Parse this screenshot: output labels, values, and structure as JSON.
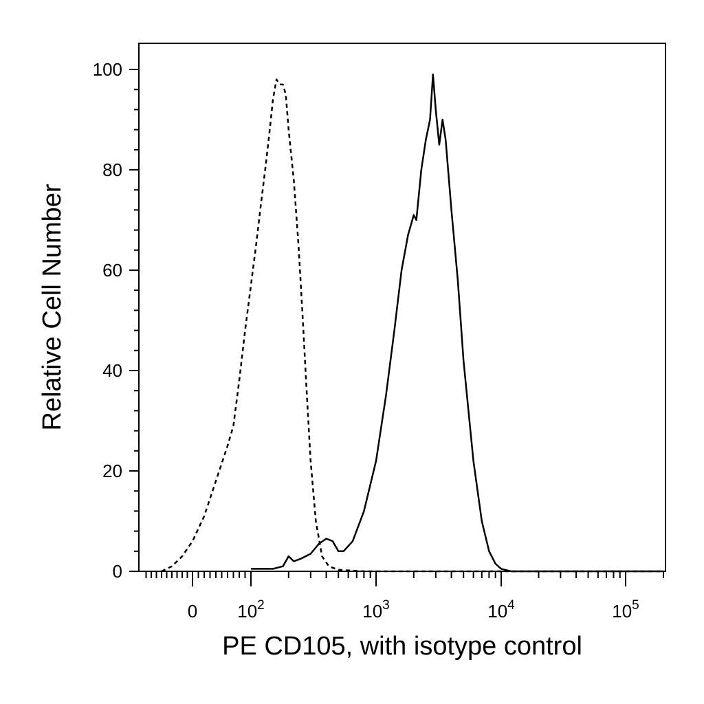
{
  "chart_data": {
    "type": "line",
    "title": "",
    "xlabel": "PE CD105, with isotype control",
    "ylabel": "Relative Cell Number",
    "x_scale": "biexponential",
    "ylim": [
      0,
      100
    ],
    "y_ticks": [
      {
        "value": 0,
        "label": "0"
      },
      {
        "value": 20,
        "label": "20"
      },
      {
        "value": 40,
        "label": "40"
      },
      {
        "value": 60,
        "label": "60"
      },
      {
        "value": 80,
        "label": "80"
      },
      {
        "value": 100,
        "label": "100"
      }
    ],
    "x_ticks": [
      {
        "value": 0,
        "base": "0",
        "exp": ""
      },
      {
        "value": 100,
        "base": "10",
        "exp": "2"
      },
      {
        "value": 1000,
        "base": "10",
        "exp": "3"
      },
      {
        "value": 10000,
        "base": "10",
        "exp": "4"
      },
      {
        "value": 100000,
        "base": "10",
        "exp": "5"
      }
    ],
    "grid": false,
    "legend": "none",
    "series": [
      {
        "style": "dashed",
        "points": [
          [
            -60,
            0
          ],
          [
            -40,
            1
          ],
          [
            -20,
            3
          ],
          [
            0,
            6
          ],
          [
            20,
            11
          ],
          [
            40,
            18
          ],
          [
            60,
            25
          ],
          [
            70,
            29
          ],
          [
            80,
            38
          ],
          [
            90,
            48
          ],
          [
            100,
            57
          ],
          [
            110,
            65
          ],
          [
            120,
            73
          ],
          [
            130,
            80
          ],
          [
            140,
            87
          ],
          [
            150,
            94
          ],
          [
            160,
            98
          ],
          [
            170,
            97
          ],
          [
            180,
            97
          ],
          [
            190,
            95
          ],
          [
            200,
            88
          ],
          [
            220,
            78
          ],
          [
            240,
            65
          ],
          [
            260,
            50
          ],
          [
            280,
            35
          ],
          [
            300,
            22
          ],
          [
            330,
            10
          ],
          [
            370,
            3
          ],
          [
            420,
            1
          ],
          [
            500,
            0.3
          ],
          [
            800,
            0
          ],
          [
            2000,
            0
          ],
          [
            10000,
            0
          ],
          [
            200000,
            0
          ]
        ]
      },
      {
        "style": "solid",
        "points": [
          [
            100,
            0.5
          ],
          [
            150,
            0.5
          ],
          [
            180,
            1
          ],
          [
            200,
            3
          ],
          [
            220,
            2
          ],
          [
            250,
            2.5
          ],
          [
            300,
            3.5
          ],
          [
            350,
            5.5
          ],
          [
            400,
            6.5
          ],
          [
            450,
            6
          ],
          [
            500,
            4
          ],
          [
            550,
            4
          ],
          [
            650,
            6
          ],
          [
            800,
            12
          ],
          [
            1000,
            22
          ],
          [
            1200,
            35
          ],
          [
            1400,
            48
          ],
          [
            1600,
            60
          ],
          [
            1800,
            67
          ],
          [
            2000,
            71
          ],
          [
            2100,
            70
          ],
          [
            2300,
            80
          ],
          [
            2500,
            86
          ],
          [
            2700,
            90
          ],
          [
            2850,
            99
          ],
          [
            3000,
            92
          ],
          [
            3200,
            85
          ],
          [
            3400,
            90
          ],
          [
            3600,
            86
          ],
          [
            4000,
            72
          ],
          [
            4500,
            58
          ],
          [
            5000,
            42
          ],
          [
            6000,
            22
          ],
          [
            7000,
            10
          ],
          [
            8000,
            4
          ],
          [
            9000,
            1.5
          ],
          [
            10000,
            0.5
          ],
          [
            12000,
            0
          ],
          [
            200000,
            0
          ]
        ]
      }
    ]
  }
}
